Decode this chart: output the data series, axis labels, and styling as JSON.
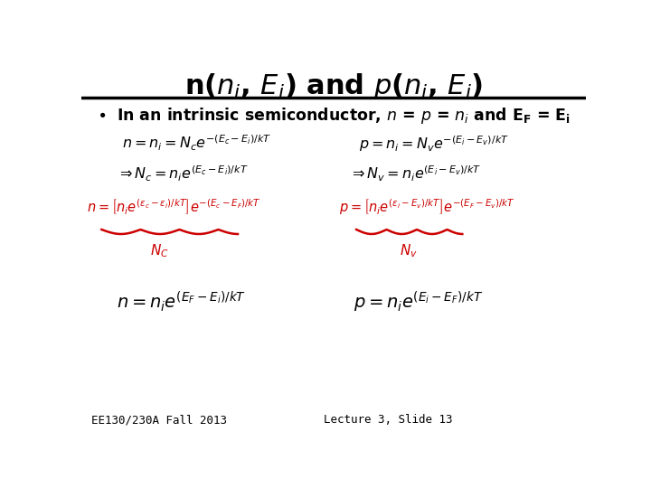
{
  "background_color": "#ffffff",
  "text_color": "#000000",
  "red_color": "#cc0000",
  "footer_left": "EE130/230A Fall 2013",
  "footer_right": "Lecture 3, Slide 13"
}
